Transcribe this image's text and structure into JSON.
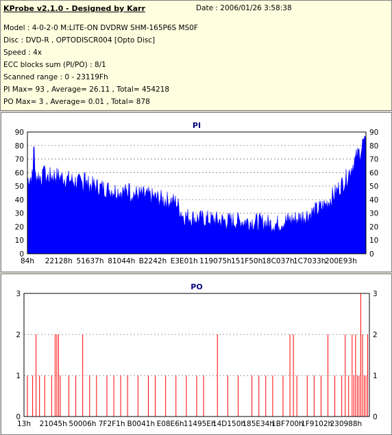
{
  "info": {
    "title": "KProbe v2.1.0 - Designed by Karr",
    "date": "Date : 2006/01/26 3:58:38",
    "lines": [
      "Model : 4-0-2-0 M:LITE-ON DVDRW SHM-165P6S MS0F",
      "Disc : DVD-R , OPTODISCR004 [Opto Disc]",
      "Speed : 4x",
      "ECC blocks sum (PI/PO) : 8/1",
      "Scanned range : 0 - 23119Fh",
      "PI Max= 93 , Average= 26.11 , Total= 454218",
      "PO Max= 3 , Average= 0.01 , Total= 878"
    ]
  },
  "chart_data": [
    {
      "type": "area",
      "title": "PI",
      "color": "#0000ff",
      "ylim": [
        0,
        90
      ],
      "yticks": [
        0,
        10,
        20,
        30,
        40,
        50,
        60,
        70,
        80,
        90
      ],
      "xtick_labels": [
        "84h",
        "22128h",
        "51637h",
        "81044h",
        "B2242h",
        "E3E01h",
        "119075h",
        "151F50h",
        "18C037h",
        "1C7033h",
        "200E93h"
      ],
      "grid": true,
      "profile": [
        [
          0,
          55
        ],
        [
          0.02,
          58
        ],
        [
          0.05,
          56
        ],
        [
          0.08,
          58
        ],
        [
          0.12,
          55
        ],
        [
          0.16,
          52
        ],
        [
          0.2,
          50
        ],
        [
          0.25,
          47
        ],
        [
          0.3,
          45
        ],
        [
          0.35,
          43
        ],
        [
          0.4,
          40
        ],
        [
          0.44,
          38
        ],
        [
          0.46,
          28
        ],
        [
          0.5,
          26
        ],
        [
          0.55,
          25
        ],
        [
          0.6,
          24
        ],
        [
          0.65,
          24
        ],
        [
          0.7,
          23
        ],
        [
          0.72,
          22
        ],
        [
          0.74,
          22
        ],
        [
          0.76,
          24
        ],
        [
          0.8,
          26
        ],
        [
          0.84,
          30
        ],
        [
          0.88,
          36
        ],
        [
          0.91,
          45
        ],
        [
          0.94,
          55
        ],
        [
          0.96,
          65
        ],
        [
          0.98,
          75
        ],
        [
          1.0,
          82
        ]
      ],
      "spikes": [
        [
          0.02,
          79
        ],
        [
          0.17,
          60
        ],
        [
          0.05,
          65
        ],
        [
          0.3,
          52
        ],
        [
          0.99,
          85
        ]
      ]
    },
    {
      "type": "bar",
      "title": "PO",
      "color": "#ff0000",
      "ylim": [
        0,
        3
      ],
      "yticks": [
        0,
        1,
        2,
        3
      ],
      "xtick_labels": [
        "13h",
        "21045h",
        "50006h",
        "7F2F1h",
        "B0041h",
        "E08E6h",
        "11495Eh",
        "14D150h",
        "185E34h",
        "1BF700h",
        "1F9102h",
        "230988h"
      ],
      "grid": true,
      "events": [
        [
          0.01,
          1
        ],
        [
          0.025,
          1
        ],
        [
          0.035,
          2
        ],
        [
          0.045,
          1
        ],
        [
          0.06,
          1
        ],
        [
          0.08,
          1
        ],
        [
          0.09,
          2
        ],
        [
          0.095,
          2
        ],
        [
          0.1,
          2
        ],
        [
          0.105,
          1
        ],
        [
          0.13,
          1
        ],
        [
          0.15,
          1
        ],
        [
          0.17,
          2
        ],
        [
          0.19,
          1
        ],
        [
          0.21,
          1
        ],
        [
          0.24,
          1
        ],
        [
          0.26,
          1
        ],
        [
          0.28,
          1
        ],
        [
          0.3,
          1
        ],
        [
          0.33,
          1
        ],
        [
          0.36,
          1
        ],
        [
          0.38,
          1
        ],
        [
          0.41,
          1
        ],
        [
          0.44,
          1
        ],
        [
          0.47,
          1
        ],
        [
          0.5,
          1
        ],
        [
          0.52,
          1
        ],
        [
          0.56,
          2
        ],
        [
          0.59,
          1
        ],
        [
          0.62,
          1
        ],
        [
          0.66,
          1
        ],
        [
          0.68,
          1
        ],
        [
          0.7,
          1
        ],
        [
          0.72,
          1
        ],
        [
          0.75,
          1
        ],
        [
          0.77,
          2
        ],
        [
          0.78,
          2
        ],
        [
          0.79,
          1
        ],
        [
          0.82,
          1
        ],
        [
          0.84,
          1
        ],
        [
          0.86,
          1
        ],
        [
          0.88,
          2
        ],
        [
          0.9,
          1
        ],
        [
          0.92,
          1
        ],
        [
          0.93,
          2
        ],
        [
          0.94,
          1
        ],
        [
          0.95,
          2
        ],
        [
          0.955,
          1
        ],
        [
          0.96,
          2
        ],
        [
          0.965,
          1
        ],
        [
          0.97,
          1
        ],
        [
          0.975,
          3
        ],
        [
          0.98,
          2
        ],
        [
          0.985,
          1
        ],
        [
          0.99,
          1
        ],
        [
          0.995,
          2
        ]
      ]
    }
  ]
}
